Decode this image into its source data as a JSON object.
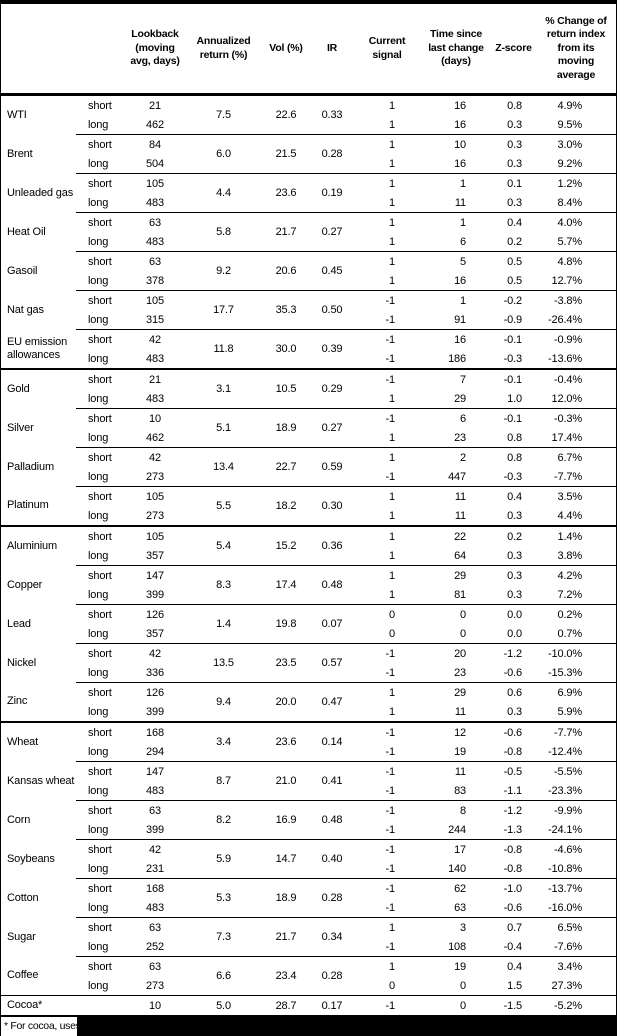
{
  "labels": {
    "short": "short",
    "long": "long"
  },
  "header": {
    "cols": [
      "Lookback\n(moving\navg, days)",
      "Annualized\nreturn (%)",
      "Vol (%)",
      "IR",
      "Current\nsignal",
      "Time since\nlast change\n(days)",
      "Z-score",
      "% Change of\nreturn index\nfrom its\nmoving\naverage"
    ]
  },
  "groups": [
    {
      "group": "energy",
      "commodities": [
        {
          "name": "WTI",
          "annualized": "7.5",
          "vol": "22.6",
          "ir": "0.33",
          "short": {
            "lookback": "21",
            "signal": "1",
            "time": "16",
            "z": "0.8",
            "change": "4.9%"
          },
          "long": {
            "lookback": "462",
            "signal": "1",
            "time": "16",
            "z": "0.3",
            "change": "9.5%"
          }
        },
        {
          "name": "Brent",
          "annualized": "6.0",
          "vol": "21.5",
          "ir": "0.28",
          "short": {
            "lookback": "84",
            "signal": "1",
            "time": "10",
            "z": "0.3",
            "change": "3.0%"
          },
          "long": {
            "lookback": "504",
            "signal": "1",
            "time": "16",
            "z": "0.3",
            "change": "9.2%"
          }
        },
        {
          "name": "Unleaded gas",
          "annualized": "4.4",
          "vol": "23.6",
          "ir": "0.19",
          "short": {
            "lookback": "105",
            "signal": "1",
            "time": "1",
            "z": "0.1",
            "change": "1.2%"
          },
          "long": {
            "lookback": "483",
            "signal": "1",
            "time": "11",
            "z": "0.3",
            "change": "8.4%"
          }
        },
        {
          "name": "Heat Oil",
          "annualized": "5.8",
          "vol": "21.7",
          "ir": "0.27",
          "short": {
            "lookback": "63",
            "signal": "1",
            "time": "1",
            "z": "0.4",
            "change": "4.0%"
          },
          "long": {
            "lookback": "483",
            "signal": "1",
            "time": "6",
            "z": "0.2",
            "change": "5.7%"
          }
        },
        {
          "name": "Gasoil",
          "annualized": "9.2",
          "vol": "20.6",
          "ir": "0.45",
          "short": {
            "lookback": "63",
            "signal": "1",
            "time": "5",
            "z": "0.5",
            "change": "4.8%"
          },
          "long": {
            "lookback": "378",
            "signal": "1",
            "time": "16",
            "z": "0.5",
            "change": "12.7%"
          }
        },
        {
          "name": "Nat gas",
          "annualized": "17.7",
          "vol": "35.3",
          "ir": "0.50",
          "short": {
            "lookback": "105",
            "signal": "-1",
            "time": "1",
            "z": "-0.2",
            "change": "-3.8%"
          },
          "long": {
            "lookback": "315",
            "signal": "-1",
            "time": "91",
            "z": "-0.9",
            "change": "-26.4%"
          }
        },
        {
          "name": "EU emission allowances",
          "annualized": "11.8",
          "vol": "30.0",
          "ir": "0.39",
          "short": {
            "lookback": "42",
            "signal": "-1",
            "time": "16",
            "z": "-0.1",
            "change": "-0.9%"
          },
          "long": {
            "lookback": "483",
            "signal": "-1",
            "time": "186",
            "z": "-0.3",
            "change": "-13.6%"
          }
        }
      ]
    },
    {
      "group": "precious-metals",
      "commodities": [
        {
          "name": "Gold",
          "annualized": "3.1",
          "vol": "10.5",
          "ir": "0.29",
          "short": {
            "lookback": "21",
            "signal": "-1",
            "time": "7",
            "z": "-0.1",
            "change": "-0.4%"
          },
          "long": {
            "lookback": "483",
            "signal": "1",
            "time": "29",
            "z": "1.0",
            "change": "12.0%"
          }
        },
        {
          "name": "Silver",
          "annualized": "5.1",
          "vol": "18.9",
          "ir": "0.27",
          "short": {
            "lookback": "10",
            "signal": "-1",
            "time": "6",
            "z": "-0.1",
            "change": "-0.3%"
          },
          "long": {
            "lookback": "462",
            "signal": "1",
            "time": "23",
            "z": "0.8",
            "change": "17.4%"
          }
        },
        {
          "name": "Palladium",
          "annualized": "13.4",
          "vol": "22.7",
          "ir": "0.59",
          "short": {
            "lookback": "42",
            "signal": "1",
            "time": "2",
            "z": "0.8",
            "change": "6.7%"
          },
          "long": {
            "lookback": "273",
            "signal": "-1",
            "time": "447",
            "z": "-0.3",
            "change": "-7.7%"
          }
        },
        {
          "name": "Platinum",
          "annualized": "5.5",
          "vol": "18.2",
          "ir": "0.30",
          "short": {
            "lookback": "105",
            "signal": "1",
            "time": "11",
            "z": "0.4",
            "change": "3.5%"
          },
          "long": {
            "lookback": "273",
            "signal": "1",
            "time": "11",
            "z": "0.3",
            "change": "4.4%"
          }
        }
      ]
    },
    {
      "group": "base-metals",
      "commodities": [
        {
          "name": "Aluminium",
          "annualized": "5.4",
          "vol": "15.2",
          "ir": "0.36",
          "short": {
            "lookback": "105",
            "signal": "1",
            "time": "22",
            "z": "0.2",
            "change": "1.4%"
          },
          "long": {
            "lookback": "357",
            "signal": "1",
            "time": "64",
            "z": "0.3",
            "change": "3.8%"
          }
        },
        {
          "name": "Copper",
          "annualized": "8.3",
          "vol": "17.4",
          "ir": "0.48",
          "short": {
            "lookback": "147",
            "signal": "1",
            "time": "29",
            "z": "0.3",
            "change": "4.2%"
          },
          "long": {
            "lookback": "399",
            "signal": "1",
            "time": "81",
            "z": "0.3",
            "change": "7.2%"
          }
        },
        {
          "name": "Lead",
          "annualized": "1.4",
          "vol": "19.8",
          "ir": "0.07",
          "short": {
            "lookback": "126",
            "signal": "0",
            "time": "0",
            "z": "0.0",
            "change": "0.2%"
          },
          "long": {
            "lookback": "357",
            "signal": "0",
            "time": "0",
            "z": "0.0",
            "change": "0.7%"
          }
        },
        {
          "name": "Nickel",
          "annualized": "13.5",
          "vol": "23.5",
          "ir": "0.57",
          "short": {
            "lookback": "42",
            "signal": "-1",
            "time": "20",
            "z": "-1.2",
            "change": "-10.0%"
          },
          "long": {
            "lookback": "336",
            "signal": "-1",
            "time": "23",
            "z": "-0.6",
            "change": "-15.3%"
          }
        },
        {
          "name": "Zinc",
          "annualized": "9.4",
          "vol": "20.0",
          "ir": "0.47",
          "short": {
            "lookback": "126",
            "signal": "1",
            "time": "29",
            "z": "0.6",
            "change": "6.9%"
          },
          "long": {
            "lookback": "399",
            "signal": "1",
            "time": "11",
            "z": "0.3",
            "change": "5.9%"
          }
        }
      ]
    },
    {
      "group": "agriculture",
      "commodities": [
        {
          "name": "Wheat",
          "annualized": "3.4",
          "vol": "23.6",
          "ir": "0.14",
          "short": {
            "lookback": "168",
            "signal": "-1",
            "time": "12",
            "z": "-0.6",
            "change": "-7.7%"
          },
          "long": {
            "lookback": "294",
            "signal": "-1",
            "time": "19",
            "z": "-0.8",
            "change": "-12.4%"
          }
        },
        {
          "name": "Kansas wheat",
          "annualized": "8.7",
          "vol": "21.0",
          "ir": "0.41",
          "short": {
            "lookback": "147",
            "signal": "-1",
            "time": "11",
            "z": "-0.5",
            "change": "-5.5%"
          },
          "long": {
            "lookback": "483",
            "signal": "-1",
            "time": "83",
            "z": "-1.1",
            "change": "-23.3%"
          }
        },
        {
          "name": "Corn",
          "annualized": "8.2",
          "vol": "16.9",
          "ir": "0.48",
          "short": {
            "lookback": "63",
            "signal": "-1",
            "time": "8",
            "z": "-1.2",
            "change": "-9.9%"
          },
          "long": {
            "lookback": "399",
            "signal": "-1",
            "time": "244",
            "z": "-1.3",
            "change": "-24.1%"
          }
        },
        {
          "name": "Soybeans",
          "annualized": "5.9",
          "vol": "14.7",
          "ir": "0.40",
          "short": {
            "lookback": "42",
            "signal": "-1",
            "time": "17",
            "z": "-0.8",
            "change": "-4.6%"
          },
          "long": {
            "lookback": "231",
            "signal": "-1",
            "time": "140",
            "z": "-0.8",
            "change": "-10.8%"
          }
        },
        {
          "name": "Cotton",
          "annualized": "5.3",
          "vol": "18.9",
          "ir": "0.28",
          "short": {
            "lookback": "168",
            "signal": "-1",
            "time": "62",
            "z": "-1.0",
            "change": "-13.7%"
          },
          "long": {
            "lookback": "483",
            "signal": "-1",
            "time": "63",
            "z": "-0.6",
            "change": "-16.0%"
          }
        },
        {
          "name": "Sugar",
          "annualized": "7.3",
          "vol": "21.7",
          "ir": "0.34",
          "short": {
            "lookback": "63",
            "signal": "1",
            "time": "3",
            "z": "0.7",
            "change": "6.5%"
          },
          "long": {
            "lookback": "252",
            "signal": "-1",
            "time": "108",
            "z": "-0.4",
            "change": "-7.6%"
          }
        },
        {
          "name": "Coffee",
          "annualized": "6.6",
          "vol": "23.4",
          "ir": "0.28",
          "short": {
            "lookback": "63",
            "signal": "1",
            "time": "19",
            "z": "0.4",
            "change": "3.4%"
          },
          "long": {
            "lookback": "273",
            "signal": "0",
            "time": "0",
            "z": "1.5",
            "change": "27.3%"
          }
        }
      ]
    }
  ],
  "single_row": {
    "name": "Cocoa*",
    "lookback": "10",
    "annualized": "5.0",
    "vol": "28.7",
    "ir": "0.17",
    "signal": "-1",
    "time": "0",
    "z": "-1.5",
    "change": "-5.2%"
  },
  "footnote": {
    "visible_text": "* For cocoa, uses o",
    "redacted": true
  },
  "colors": {
    "text": "#000000",
    "background": "#ffffff",
    "border": "#000000",
    "redaction": "#000000"
  }
}
